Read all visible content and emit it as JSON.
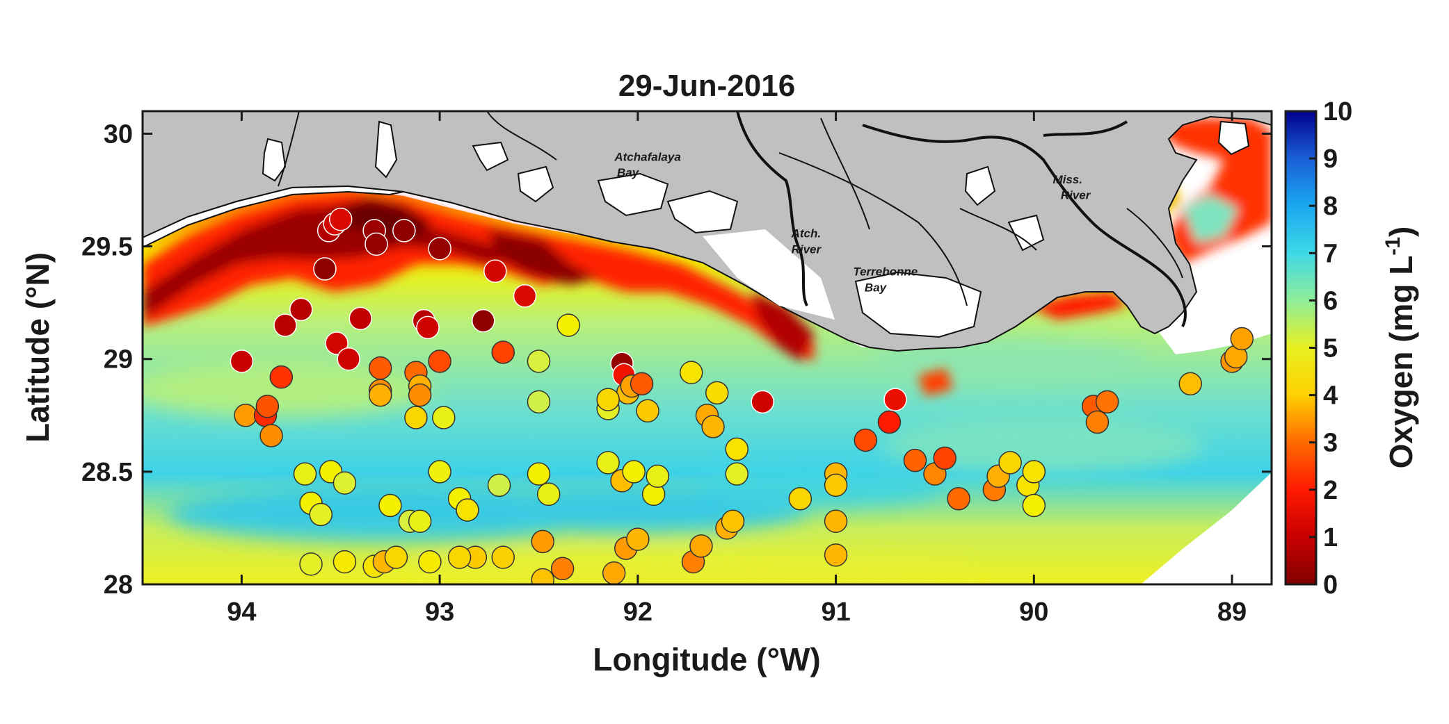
{
  "chart_data": {
    "type": "scatter",
    "title": "29-Jun-2016",
    "xlabel": "Longitude (°W)",
    "ylabel": "Latitude (°N)",
    "colorbar_label": "Oxygen (mg L",
    "colorbar_unit_exponent": "-1",
    "colorbar_label_close": ")",
    "xlim": [
      94.5,
      88.8
    ],
    "ylim": [
      28.0,
      30.1
    ],
    "xticks": [
      "94",
      "93",
      "92",
      "91",
      "90",
      "89"
    ],
    "yticks": [
      "28",
      "28.5",
      "29",
      "29.5",
      "30"
    ],
    "clim": [
      0,
      10
    ],
    "cticks": [
      "0",
      "1",
      "2",
      "3",
      "4",
      "5",
      "6",
      "7",
      "8",
      "9",
      "10"
    ],
    "colormap": [
      "#7f0000",
      "#c80000",
      "#ff1a00",
      "#ff6a00",
      "#ffb000",
      "#f5f000",
      "#b8f07a",
      "#5ee6d8",
      "#1ec8f0",
      "#1a6fe0",
      "#00008f"
    ],
    "land_color": "#c0c0c0",
    "place_labels": [
      {
        "text": "Atchafalaya",
        "lon": 91.95,
        "lat": 29.88
      },
      {
        "text": "Bay",
        "lon": 92.05,
        "lat": 29.81
      },
      {
        "text": "Atch.",
        "lon": 91.15,
        "lat": 29.54
      },
      {
        "text": "River",
        "lon": 91.15,
        "lat": 29.47
      },
      {
        "text": "Terrebonne",
        "lon": 90.75,
        "lat": 29.37
      },
      {
        "text": "Bay",
        "lon": 90.8,
        "lat": 29.3
      },
      {
        "text": "Miss.",
        "lon": 89.83,
        "lat": 29.78
      },
      {
        "text": "River",
        "lon": 89.79,
        "lat": 29.71
      }
    ],
    "stations_columns": [
      "lon_W",
      "lat_N",
      "oxygen_mg_L"
    ],
    "stations": [
      [
        94.0,
        28.99,
        1.0
      ],
      [
        93.98,
        28.75,
        3.7
      ],
      [
        93.88,
        28.75,
        2.2
      ],
      [
        93.87,
        28.79,
        2.7
      ],
      [
        93.85,
        28.66,
        3.5
      ],
      [
        93.8,
        28.92,
        2.3
      ],
      [
        93.78,
        29.15,
        0.8
      ],
      [
        93.7,
        29.22,
        0.8
      ],
      [
        93.58,
        29.4,
        0.2
      ],
      [
        93.56,
        29.57,
        0.7
      ],
      [
        93.53,
        29.6,
        1.2
      ],
      [
        93.5,
        29.62,
        1.3
      ],
      [
        93.52,
        29.07,
        1.2
      ],
      [
        93.46,
        29.0,
        1.1
      ],
      [
        93.4,
        29.18,
        0.9
      ],
      [
        93.33,
        29.57,
        0.4
      ],
      [
        93.32,
        29.51,
        0.3
      ],
      [
        93.3,
        28.96,
        2.8
      ],
      [
        93.3,
        28.86,
        3.5
      ],
      [
        93.3,
        28.84,
        4.0
      ],
      [
        93.18,
        29.57,
        0.2
      ],
      [
        93.12,
        28.94,
        3.0
      ],
      [
        93.1,
        28.88,
        4.0
      ],
      [
        93.12,
        28.74,
        4.6
      ],
      [
        93.1,
        28.84,
        3.5
      ],
      [
        93.08,
        29.17,
        0.8
      ],
      [
        93.06,
        29.14,
        1.1
      ],
      [
        93.0,
        28.99,
        2.6
      ],
      [
        93.0,
        29.49,
        0.3
      ],
      [
        92.98,
        28.74,
        5.2
      ],
      [
        92.78,
        29.17,
        0.2
      ],
      [
        92.72,
        29.39,
        1.2
      ],
      [
        92.68,
        29.03,
        2.5
      ],
      [
        92.57,
        29.28,
        1.3
      ],
      [
        92.5,
        28.99,
        5.5
      ],
      [
        92.5,
        28.81,
        5.6
      ],
      [
        92.35,
        29.15,
        5.0
      ],
      [
        92.15,
        28.78,
        5.3
      ],
      [
        92.08,
        28.98,
        0.3
      ],
      [
        92.07,
        28.93,
        1.7
      ],
      [
        92.05,
        28.85,
        4.2
      ],
      [
        92.03,
        28.88,
        3.8
      ],
      [
        91.98,
        28.89,
        2.8
      ],
      [
        91.95,
        28.77,
        4.4
      ],
      [
        91.73,
        28.94,
        4.8
      ],
      [
        91.65,
        28.75,
        3.9
      ],
      [
        91.62,
        28.7,
        4.1
      ],
      [
        91.6,
        28.85,
        4.7
      ],
      [
        91.5,
        28.6,
        4.8
      ],
      [
        91.37,
        28.81,
        1.1
      ],
      [
        90.85,
        28.64,
        2.6
      ],
      [
        90.73,
        28.72,
        2.0
      ],
      [
        90.7,
        28.82,
        1.6
      ],
      [
        90.6,
        28.55,
        2.9
      ],
      [
        90.5,
        28.49,
        3.4
      ],
      [
        90.45,
        28.56,
        2.5
      ],
      [
        90.38,
        28.38,
        3.0
      ],
      [
        90.2,
        28.42,
        3.2
      ],
      [
        90.18,
        28.48,
        4.0
      ],
      [
        90.12,
        28.54,
        4.6
      ],
      [
        90.03,
        28.44,
        4.8
      ],
      [
        90.0,
        28.5,
        4.8
      ],
      [
        90.0,
        28.35,
        5.0
      ],
      [
        89.7,
        28.79,
        2.8
      ],
      [
        89.68,
        28.72,
        3.3
      ],
      [
        89.63,
        28.81,
        3.1
      ],
      [
        89.21,
        28.89,
        4.2
      ],
      [
        89.0,
        28.99,
        3.6
      ],
      [
        88.98,
        29.01,
        3.9
      ],
      [
        88.95,
        29.09,
        3.8
      ],
      [
        93.68,
        28.49,
        5.2
      ],
      [
        93.65,
        28.36,
        5.0
      ],
      [
        93.6,
        28.31,
        5.3
      ],
      [
        93.55,
        28.5,
        5.0
      ],
      [
        93.48,
        28.1,
        4.9
      ],
      [
        93.48,
        28.45,
        5.4
      ],
      [
        93.33,
        28.08,
        4.8
      ],
      [
        93.28,
        28.1,
        4.1
      ],
      [
        93.25,
        28.35,
        5.0
      ],
      [
        93.22,
        28.12,
        4.6
      ],
      [
        93.15,
        28.28,
        5.5
      ],
      [
        93.1,
        28.28,
        5.2
      ],
      [
        93.05,
        28.1,
        4.9
      ],
      [
        93.0,
        28.5,
        5.1
      ],
      [
        92.9,
        28.38,
        5.0
      ],
      [
        92.86,
        28.33,
        4.8
      ],
      [
        92.82,
        28.12,
        4.4
      ],
      [
        92.7,
        28.44,
        5.6
      ],
      [
        92.68,
        28.12,
        4.5
      ],
      [
        92.5,
        28.49,
        5.0
      ],
      [
        92.48,
        28.19,
        3.7
      ],
      [
        92.45,
        28.4,
        5.2
      ],
      [
        92.48,
        28.02,
        4.3
      ],
      [
        92.38,
        28.07,
        3.3
      ],
      [
        92.15,
        28.54,
        5.2
      ],
      [
        92.12,
        28.05,
        3.9
      ],
      [
        92.08,
        28.46,
        4.2
      ],
      [
        92.06,
        28.16,
        3.7
      ],
      [
        92.02,
        28.5,
        5.0
      ],
      [
        92.0,
        28.2,
        4.1
      ],
      [
        91.92,
        28.4,
        5.0
      ],
      [
        91.9,
        28.48,
        5.2
      ],
      [
        91.72,
        28.1,
        3.3
      ],
      [
        91.68,
        28.17,
        3.9
      ],
      [
        91.55,
        28.25,
        4.0
      ],
      [
        91.52,
        28.28,
        4.3
      ],
      [
        91.5,
        28.49,
        5.3
      ],
      [
        91.18,
        28.38,
        4.6
      ],
      [
        91.0,
        28.49,
        4.1
      ],
      [
        91.0,
        28.44,
        4.4
      ],
      [
        91.0,
        28.28,
        4.1
      ],
      [
        91.0,
        28.13,
        4.1
      ],
      [
        93.65,
        28.09,
        5.3
      ],
      [
        92.9,
        28.12,
        4.6
      ],
      [
        92.15,
        28.82,
        4.6
      ]
    ]
  }
}
